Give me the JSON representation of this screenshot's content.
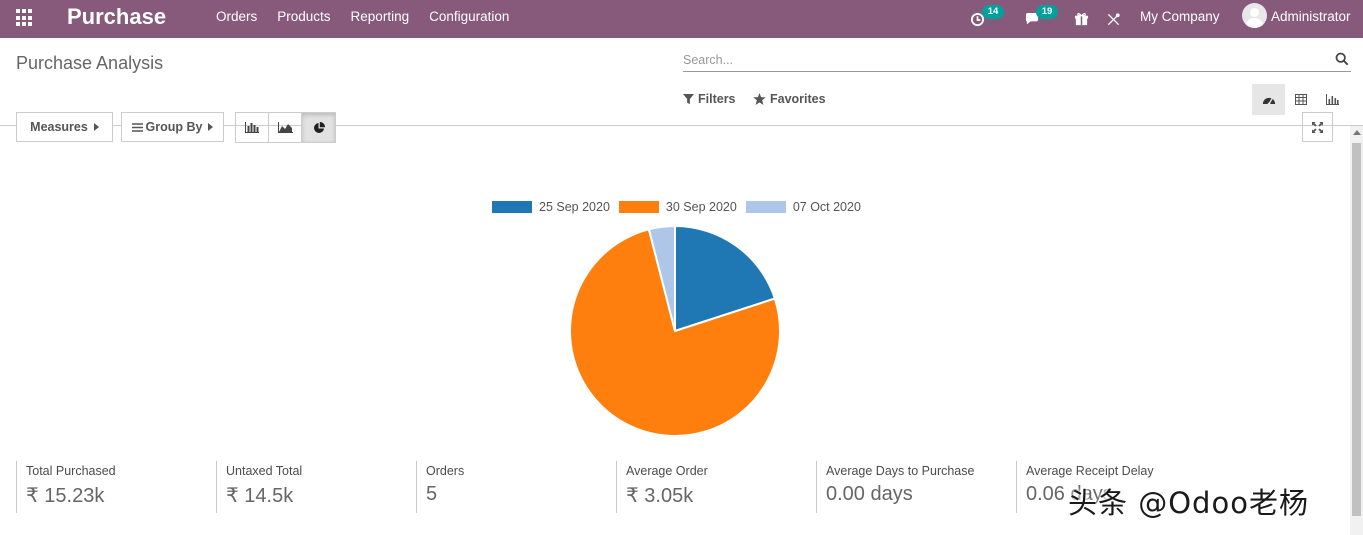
{
  "navbar": {
    "app_name": "Purchase",
    "menu": [
      "Orders",
      "Products",
      "Reporting",
      "Configuration"
    ],
    "activity_count": "14",
    "message_count": "19",
    "company": "My Company",
    "user": "Administrator",
    "color": "#875a7b"
  },
  "control_panel": {
    "title": "Purchase Analysis",
    "search_placeholder": "Search...",
    "filters_label": "Filters",
    "favorites_label": "Favorites",
    "views": [
      "dashboard",
      "pivot",
      "graph"
    ],
    "active_view": "dashboard"
  },
  "toolbar": {
    "measures_label": "Measures",
    "group_by_label": "Group By",
    "modes": [
      "bar",
      "line",
      "pie"
    ],
    "active_mode": "pie"
  },
  "chart_data": {
    "type": "pie",
    "categories": [
      "25 Sep 2020",
      "30 Sep 2020",
      "07 Oct 2020"
    ],
    "values": [
      20,
      76,
      4
    ],
    "colors": [
      "#1f77b4",
      "#ff7f0e",
      "#aec7e8"
    ],
    "legend_position": "top"
  },
  "kpis": [
    {
      "label": "Total Purchased",
      "value": "₹ 15.23k"
    },
    {
      "label": "Untaxed Total",
      "value": "₹ 14.5k"
    },
    {
      "label": "Orders",
      "value": "5"
    },
    {
      "label": "Average Order",
      "value": "₹ 3.05k"
    },
    {
      "label": "Average Days to Purchase",
      "value": "0.00 days"
    },
    {
      "label": "Average Receipt Delay",
      "value": "0.06 days"
    }
  ],
  "watermark": "头条 @Odoo老杨"
}
